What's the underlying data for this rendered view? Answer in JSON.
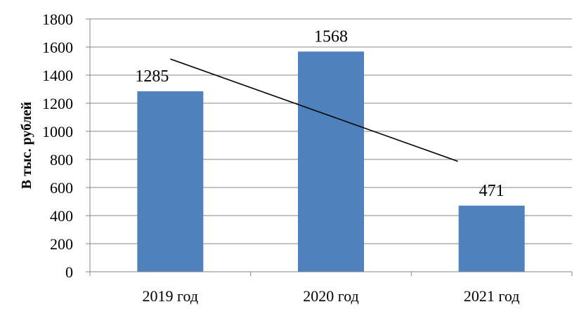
{
  "chart_data": {
    "type": "bar",
    "title": "",
    "xlabel": "",
    "ylabel": "В тыс. рублей",
    "categories": [
      "2019 год",
      "2020 год",
      "2021 год"
    ],
    "series": [
      {
        "values": [
          1285,
          1568,
          471
        ],
        "color": "#4f81bd"
      }
    ],
    "data_labels": [
      "1285",
      "1568",
      "471"
    ],
    "ylim": [
      0,
      1800
    ],
    "yticks": [
      0,
      200,
      400,
      600,
      800,
      1000,
      1200,
      1400,
      1600,
      1800
    ],
    "grid": true,
    "legend": "none",
    "trendline": {
      "type": "linear",
      "color": "#000000"
    }
  }
}
